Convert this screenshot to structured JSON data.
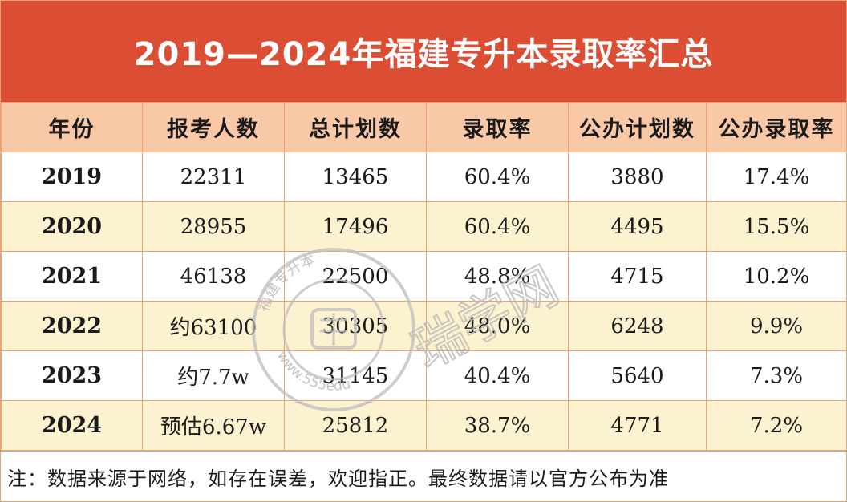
{
  "title": "2019—2024年福建专升本录取率汇总",
  "table": {
    "headers": [
      "年份",
      "报考人数",
      "总计划数",
      "录取率",
      "公办计划数",
      "公办录取率"
    ],
    "rows": [
      [
        "2019",
        "22311",
        "13465",
        "60.4%",
        "3880",
        "17.4%"
      ],
      [
        "2020",
        "28955",
        "17496",
        "60.4%",
        "4495",
        "15.5%"
      ],
      [
        "2021",
        "46138",
        "22500",
        "48.8%",
        "4715",
        "10.2%"
      ],
      [
        "2022",
        "约63100",
        "30305",
        "48.0%",
        "6248",
        "9.9%"
      ],
      [
        "2023",
        "约7.7w",
        "31145",
        "40.4%",
        "5640",
        "7.3%"
      ],
      [
        "2024",
        "预估6.67w",
        "25812",
        "38.7%",
        "4771",
        "7.2%"
      ]
    ]
  },
  "footnote": "注：数据来源于网络，如存在误差，欢迎指正。最终数据请以官方公布为准",
  "watermark": {
    "seal_top_text": "福建专升本",
    "seal_bottom_text": "www.555edu",
    "side_text": "瑞学网",
    "color": "#b9b9b9"
  },
  "colors": {
    "title_bg": "#dc4e33",
    "header_bg": "#f9c8a6",
    "alt_row_bg": "#fdf2d0",
    "border": "#f0a070"
  }
}
